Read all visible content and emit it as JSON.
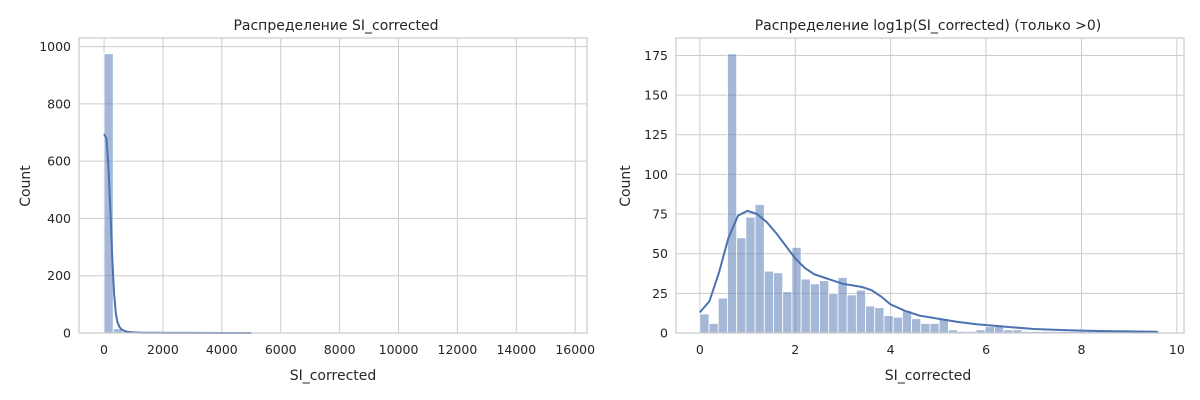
{
  "chart_data": [
    {
      "type": "histogram",
      "title": "Распределение SI_corrected",
      "xlabel": "SI_corrected",
      "ylabel": "Count",
      "xlim": [
        -850,
        16400
      ],
      "ylim": [
        0,
        1030
      ],
      "xticks": [
        0,
        2000,
        4000,
        6000,
        8000,
        10000,
        12000,
        14000,
        16000
      ],
      "yticks": [
        0,
        200,
        400,
        600,
        800,
        1000
      ],
      "grid": true,
      "bins": {
        "start": 0,
        "width": 312,
        "counts": [
          975,
          15,
          5,
          4,
          3,
          2,
          2,
          1,
          1,
          1,
          1,
          1,
          1,
          1,
          1,
          1,
          1,
          1,
          1,
          1,
          1,
          1,
          1,
          1,
          1,
          1,
          1,
          1,
          1,
          1,
          1,
          1,
          1,
          1,
          1,
          1,
          1,
          1,
          1,
          1,
          1,
          1,
          1,
          1,
          1,
          1,
          1,
          1,
          1,
          1
        ]
      },
      "kde": {
        "x": [
          0,
          80,
          150,
          220,
          280,
          340,
          400,
          450,
          520,
          600,
          700,
          800,
          1000,
          1300,
          1700,
          2200,
          3000,
          4000,
          5000
        ],
        "y": [
          695,
          680,
          580,
          420,
          260,
          140,
          70,
          40,
          22,
          12,
          7,
          4,
          2,
          1,
          1,
          0.5,
          0.3,
          0.2,
          0.1
        ]
      }
    },
    {
      "type": "histogram",
      "title": "Распределение log1p(SI_corrected) (только >0)",
      "xlabel": "SI_corrected",
      "ylabel": "Count",
      "xlim": [
        -0.5,
        10.15
      ],
      "ylim": [
        0,
        186
      ],
      "xticks": [
        0,
        2,
        4,
        6,
        8,
        10
      ],
      "yticks": [
        0,
        25,
        50,
        75,
        100,
        125,
        150,
        175
      ],
      "grid": true,
      "bins": {
        "start": 0,
        "width": 0.193,
        "counts": [
          12,
          6,
          22,
          176,
          60,
          73,
          81,
          39,
          38,
          26,
          54,
          34,
          31,
          33,
          25,
          35,
          24,
          27,
          17,
          16,
          11,
          10,
          14,
          9,
          6,
          6,
          9,
          2,
          1,
          1,
          2,
          4,
          5,
          2,
          2,
          1,
          1,
          1,
          1,
          1,
          1,
          1,
          1,
          1,
          1,
          1,
          1,
          1,
          1,
          1
        ]
      },
      "kde": {
        "x": [
          0,
          0.2,
          0.4,
          0.6,
          0.8,
          1.0,
          1.2,
          1.4,
          1.6,
          1.8,
          2.0,
          2.2,
          2.4,
          2.6,
          2.8,
          3.0,
          3.2,
          3.4,
          3.6,
          3.8,
          4.0,
          4.3,
          4.6,
          5.0,
          5.4,
          5.8,
          6.2,
          6.6,
          7.0,
          7.5,
          8.0,
          8.5,
          9.0,
          9.6
        ],
        "y": [
          13,
          20,
          38,
          60,
          74,
          77,
          75,
          70,
          63,
          55,
          47,
          41,
          37,
          35,
          33,
          31,
          30,
          29,
          27,
          23,
          18,
          14,
          11,
          9,
          7,
          5.5,
          4.5,
          3.5,
          2.5,
          2,
          1.5,
          1.2,
          1,
          0.8
        ]
      }
    }
  ]
}
